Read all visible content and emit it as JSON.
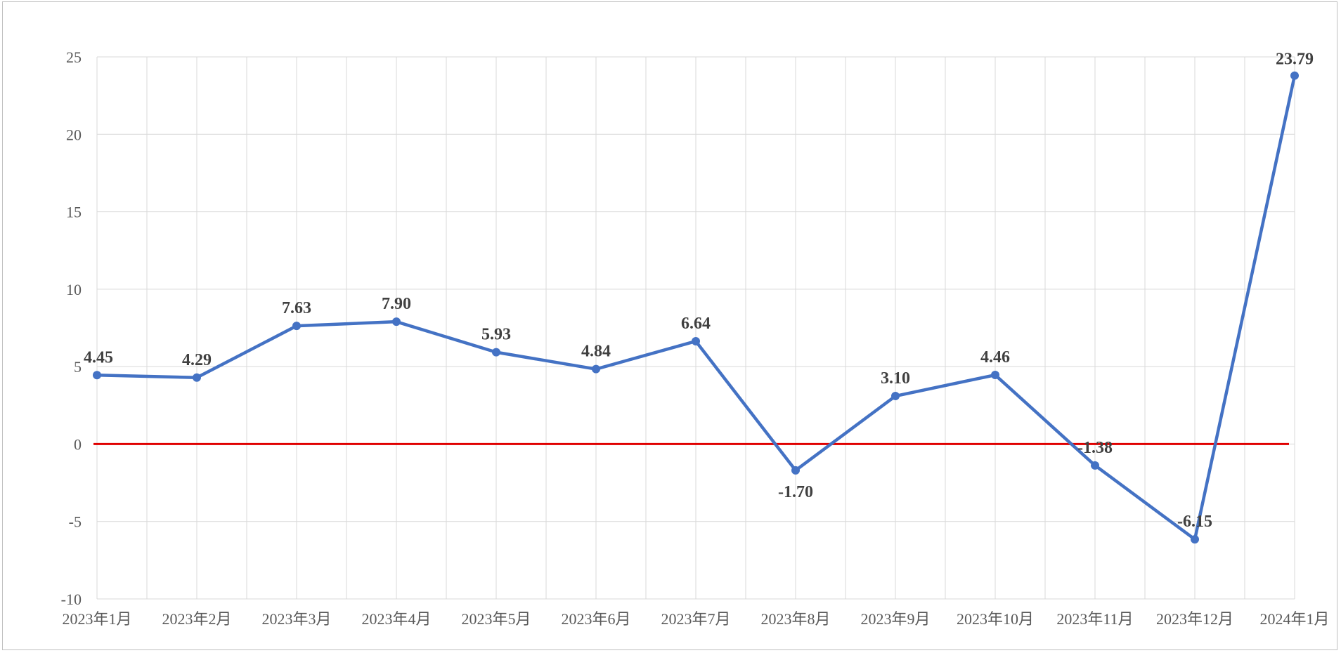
{
  "chart_data": {
    "type": "line",
    "title": "",
    "xlabel": "",
    "ylabel": "",
    "categories": [
      "2023年1月",
      "2023年2月",
      "2023年3月",
      "2023年4月",
      "2023年5月",
      "2023年6月",
      "2023年7月",
      "2023年8月",
      "2023年9月",
      "2023年10月",
      "2023年11月",
      "2023年12月",
      "2024年1月"
    ],
    "series": [
      {
        "values": [
          4.45,
          4.29,
          7.63,
          7.9,
          5.93,
          4.84,
          6.64,
          -1.7,
          3.1,
          4.46,
          -1.38,
          -6.15,
          23.79
        ],
        "labels": [
          "4.45",
          "4.29",
          "7.63",
          "7.90",
          "5.93",
          "4.84",
          "6.64",
          "-1.70",
          "3.10",
          "4.46",
          "-1.38",
          "-6.15",
          "23.79"
        ],
        "color": "#4472C4"
      }
    ],
    "ylim": [
      -10,
      25
    ],
    "yticks": [
      -10,
      -5,
      0,
      5,
      10,
      15,
      20,
      25
    ],
    "ytick_labels": [
      "-10",
      "-5",
      "0",
      "5",
      "10",
      "15",
      "20",
      "25"
    ],
    "reference_line": {
      "y": 0,
      "color": "#E00000"
    },
    "grid": true,
    "grid_color": "#d9d9d9",
    "legend": "none"
  }
}
